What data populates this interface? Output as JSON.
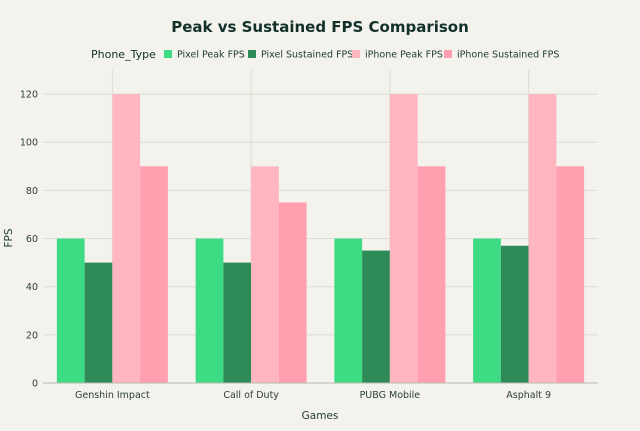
{
  "chart_data": {
    "type": "bar",
    "title": "Peak vs Sustained FPS Comparison",
    "legend_title": "Phone_Type",
    "legend_position": "top",
    "xlabel": "Games",
    "ylabel": "FPS",
    "categories": [
      "Genshin Impact",
      "Call of Duty",
      "PUBG Mobile",
      "Asphalt 9"
    ],
    "series": [
      {
        "name": "Pixel Peak FPS",
        "color": "#3ddc84",
        "values": [
          60,
          60,
          60,
          60
        ]
      },
      {
        "name": "Pixel Sustained FPS",
        "color": "#2e8b57",
        "values": [
          50,
          50,
          55,
          57
        ]
      },
      {
        "name": "iPhone Peak FPS",
        "color": "#ffb6c1",
        "values": [
          120,
          90,
          120,
          120
        ]
      },
      {
        "name": "iPhone Sustained FPS",
        "color": "#ff9fb0",
        "values": [
          90,
          75,
          90,
          90
        ]
      }
    ],
    "ylim": [
      0,
      130
    ],
    "yticks": [
      0,
      20,
      40,
      60,
      80,
      100,
      120
    ],
    "grid": true
  }
}
